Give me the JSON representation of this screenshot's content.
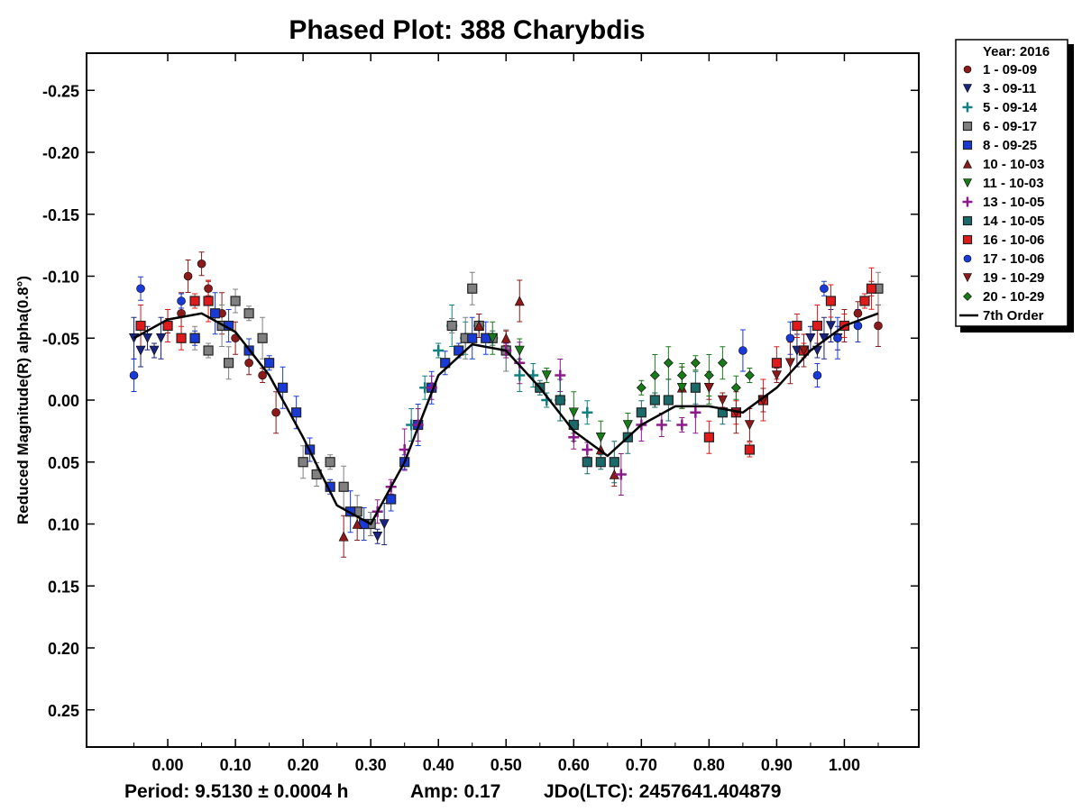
{
  "chart_data": {
    "type": "scatter",
    "title": "Phased Plot: 388 Charybdis",
    "ylabel": "Reduced Magnitude(R) alpha(0.8°)",
    "xlabel": "",
    "xlim": [
      -0.12,
      1.11
    ],
    "ylim": [
      0.28,
      -0.28
    ],
    "y_inverted": true,
    "grid": false,
    "legend_position": "outside-right",
    "x_ticks": [
      "0.00",
      "0.10",
      "0.20",
      "0.30",
      "0.40",
      "0.50",
      "0.60",
      "0.70",
      "0.80",
      "0.90",
      "1.00"
    ],
    "x_tick_values": [
      0,
      0.1,
      0.2,
      0.3,
      0.4,
      0.5,
      0.6,
      0.7,
      0.8,
      0.9,
      1.0
    ],
    "y_ticks": [
      "-0.25",
      "-0.20",
      "-0.15",
      "-0.10",
      "-0.05",
      "0.00",
      "0.05",
      "0.10",
      "0.15",
      "0.20",
      "0.25"
    ],
    "y_tick_values": [
      -0.25,
      -0.2,
      -0.15,
      -0.1,
      -0.05,
      0,
      0.05,
      0.1,
      0.15,
      0.2,
      0.25
    ],
    "legend_title": "Year: 2016",
    "series": [
      {
        "name": "1 - 09-09",
        "marker": "circle",
        "color": "#8b1a1a",
        "x": [
          0.0,
          0.02,
          0.03,
          0.05,
          0.06,
          0.08,
          0.1,
          0.12,
          0.14,
          0.16,
          1.0,
          1.02,
          1.04,
          1.05
        ],
        "y": [
          -0.06,
          -0.07,
          -0.1,
          -0.11,
          -0.09,
          -0.07,
          -0.05,
          -0.03,
          -0.02,
          0.01,
          -0.06,
          -0.07,
          -0.09,
          -0.06
        ]
      },
      {
        "name": "3 - 09-11",
        "marker": "triangle-down",
        "color": "#1a237e",
        "x": [
          -0.05,
          -0.04,
          -0.03,
          -0.02,
          -0.01,
          0.0,
          0.3,
          0.31,
          0.32,
          0.93,
          0.95,
          0.96,
          0.97,
          0.98,
          0.99
        ],
        "y": [
          -0.05,
          -0.04,
          -0.05,
          -0.04,
          -0.05,
          -0.06,
          0.1,
          0.11,
          0.1,
          -0.04,
          -0.05,
          -0.04,
          -0.05,
          -0.06,
          -0.05
        ]
      },
      {
        "name": "5 - 09-14",
        "marker": "plus",
        "color": "#108080",
        "x": [
          0.36,
          0.38,
          0.4,
          0.42,
          0.44,
          0.46,
          0.48,
          0.5,
          0.52,
          0.54,
          0.56,
          0.58,
          0.6,
          0.62
        ],
        "y": [
          0.02,
          -0.01,
          -0.04,
          -0.06,
          -0.05,
          -0.06,
          -0.05,
          -0.04,
          -0.02,
          -0.02,
          0.0,
          0.0,
          0.02,
          0.01
        ]
      },
      {
        "name": "6 - 09-17",
        "marker": "square",
        "color": "#808080",
        "x": [
          0.04,
          0.06,
          0.08,
          0.09,
          0.1,
          0.12,
          0.14,
          0.2,
          0.22,
          0.24,
          0.26,
          0.28,
          0.3,
          0.42,
          0.44,
          0.45,
          0.46,
          0.48,
          0.5,
          1.05
        ],
        "y": [
          -0.05,
          -0.04,
          -0.06,
          -0.03,
          -0.08,
          -0.07,
          -0.05,
          0.05,
          0.06,
          0.05,
          0.07,
          0.09,
          0.1,
          -0.06,
          -0.05,
          -0.09,
          -0.06,
          -0.05,
          -0.04,
          -0.09
        ]
      },
      {
        "name": "8 - 09-25",
        "marker": "square",
        "color": "#1a3ad8",
        "x": [
          0.04,
          0.07,
          0.09,
          0.12,
          0.15,
          0.17,
          0.19,
          0.21,
          0.24,
          0.27,
          0.29,
          0.33,
          0.35,
          0.37,
          0.39,
          0.41,
          0.43,
          0.45,
          0.47
        ],
        "y": [
          -0.05,
          -0.07,
          -0.06,
          -0.04,
          -0.03,
          -0.01,
          0.01,
          0.04,
          0.07,
          0.09,
          0.1,
          0.08,
          0.05,
          0.02,
          -0.01,
          -0.03,
          -0.04,
          -0.05,
          -0.05
        ]
      },
      {
        "name": "10 - 10-03",
        "marker": "triangle-up",
        "color": "#8b1a1a",
        "x": [
          0.26,
          0.28,
          0.46,
          0.5,
          0.52,
          0.64,
          0.66,
          0.72,
          0.76
        ],
        "y": [
          0.11,
          0.1,
          -0.06,
          -0.05,
          -0.08,
          0.04,
          0.06,
          0.0,
          -0.01
        ]
      },
      {
        "name": "11 - 10-03",
        "marker": "triangle-down",
        "color": "#1a7a1a",
        "x": [
          0.48,
          0.52,
          0.56,
          0.6,
          0.64,
          0.68,
          0.72,
          0.76,
          0.8
        ],
        "y": [
          -0.05,
          -0.04,
          -0.02,
          0.01,
          0.03,
          0.02,
          0.0,
          -0.01,
          -0.01
        ]
      },
      {
        "name": "13 - 10-05",
        "marker": "plus",
        "color": "#8b1a8b",
        "x": [
          0.31,
          0.33,
          0.35,
          0.37,
          0.39,
          0.5,
          0.52,
          0.58,
          0.6,
          0.62,
          0.67,
          0.7,
          0.73,
          0.76,
          0.78
        ],
        "y": [
          0.09,
          0.07,
          0.04,
          0.02,
          -0.01,
          -0.04,
          -0.03,
          -0.02,
          0.03,
          0.04,
          0.06,
          0.02,
          0.02,
          0.02,
          0.01
        ]
      },
      {
        "name": "14 - 10-05",
        "marker": "square",
        "color": "#1a6a6a",
        "x": [
          0.55,
          0.58,
          0.6,
          0.62,
          0.64,
          0.66,
          0.68,
          0.7,
          0.72,
          0.74,
          0.78,
          0.82
        ],
        "y": [
          -0.01,
          0.0,
          0.02,
          0.05,
          0.05,
          0.05,
          0.03,
          0.01,
          0.0,
          0.0,
          -0.01,
          0.01
        ]
      },
      {
        "name": "16 - 10-06",
        "marker": "square",
        "color": "#e01a1a",
        "x": [
          -0.04,
          0.0,
          0.02,
          0.04,
          0.06,
          0.8,
          0.84,
          0.86,
          0.88,
          0.9,
          0.93,
          0.94,
          0.96,
          0.98,
          1.0,
          1.03,
          1.04
        ],
        "y": [
          -0.06,
          -0.06,
          -0.05,
          -0.08,
          -0.08,
          0.03,
          0.01,
          0.04,
          0.0,
          -0.03,
          -0.06,
          -0.04,
          -0.06,
          -0.08,
          -0.06,
          -0.08,
          -0.09
        ]
      },
      {
        "name": "17 - 10-06",
        "marker": "circle",
        "color": "#1a3ad8",
        "x": [
          -0.05,
          -0.04,
          0.02,
          0.85,
          0.92,
          0.96,
          0.97,
          0.99,
          1.02
        ],
        "y": [
          -0.02,
          -0.09,
          -0.08,
          -0.04,
          -0.05,
          -0.02,
          -0.09,
          -0.05,
          -0.06
        ]
      },
      {
        "name": "19 - 10-29",
        "marker": "triangle-down",
        "color": "#8b1a1a",
        "x": [
          0.8,
          0.82,
          0.84,
          0.86,
          0.88,
          0.9,
          0.92,
          0.94
        ],
        "y": [
          -0.01,
          0.0,
          0.01,
          0.02,
          0.0,
          -0.02,
          -0.03,
          -0.04
        ]
      },
      {
        "name": "20 - 10-29",
        "marker": "diamond",
        "color": "#1a7a1a",
        "x": [
          0.7,
          0.72,
          0.74,
          0.76,
          0.78,
          0.8,
          0.82,
          0.84,
          0.86
        ],
        "y": [
          -0.01,
          -0.02,
          -0.03,
          -0.02,
          -0.03,
          -0.02,
          -0.03,
          -0.01,
          -0.02
        ]
      },
      {
        "name": "7th Order",
        "marker": "line",
        "color": "#000000",
        "x": [
          -0.05,
          0.0,
          0.05,
          0.1,
          0.15,
          0.2,
          0.25,
          0.3,
          0.35,
          0.4,
          0.45,
          0.5,
          0.55,
          0.6,
          0.65,
          0.7,
          0.75,
          0.8,
          0.85,
          0.9,
          0.95,
          1.0,
          1.05
        ],
        "y": [
          -0.05,
          -0.065,
          -0.07,
          -0.055,
          -0.02,
          0.03,
          0.085,
          0.1,
          0.05,
          -0.02,
          -0.045,
          -0.04,
          -0.01,
          0.025,
          0.045,
          0.02,
          0.005,
          0.005,
          0.01,
          -0.01,
          -0.04,
          -0.06,
          -0.07
        ]
      }
    ],
    "footer": {
      "period": "Period: 9.5130 ± 0.0004 h",
      "amp": "Amp: 0.17",
      "jdo": "JDo(LTC): 2457641.404879"
    }
  }
}
